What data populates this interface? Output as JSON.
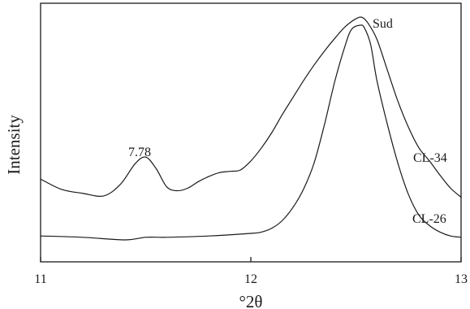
{
  "chart_data": {
    "type": "line",
    "xlabel": "°2θ",
    "ylabel": "Intensity",
    "xlim": [
      11,
      13
    ],
    "ylim": [
      0,
      100
    ],
    "x_ticks": [
      "11",
      "12",
      "13"
    ],
    "y_ticks": [],
    "grid": false,
    "series": [
      {
        "name": "CL-34",
        "x": [
          11.0,
          11.1,
          11.2,
          11.3,
          11.38,
          11.45,
          11.5,
          11.55,
          11.6,
          11.65,
          11.7,
          11.75,
          11.8,
          11.85,
          11.9,
          11.95,
          12.0,
          12.05,
          12.1,
          12.15,
          12.2,
          12.25,
          12.3,
          12.35,
          12.4,
          12.45,
          12.5,
          12.53,
          12.56,
          12.6,
          12.65,
          12.7,
          12.75,
          12.8,
          12.85,
          12.9,
          12.95,
          13.0
        ],
        "y": [
          32,
          28,
          26.5,
          25.5,
          30,
          38,
          40.5,
          36,
          29,
          27.5,
          28.5,
          31,
          33,
          34.5,
          35,
          35.5,
          39,
          44,
          50,
          57,
          63.5,
          70,
          76,
          81.5,
          86.5,
          91,
          94,
          94.5,
          92,
          86,
          74,
          62,
          52,
          44,
          39,
          33.5,
          28.5,
          25
        ]
      },
      {
        "name": "CL-26",
        "x": [
          11.0,
          11.2,
          11.4,
          11.5,
          11.6,
          11.8,
          12.0,
          12.05,
          12.1,
          12.15,
          12.2,
          12.25,
          12.3,
          12.35,
          12.4,
          12.45,
          12.48,
          12.52,
          12.54,
          12.57,
          12.6,
          12.65,
          12.7,
          12.75,
          12.8,
          12.85,
          12.9,
          12.95,
          13.0
        ],
        "y": [
          10,
          9.5,
          8.5,
          9.5,
          9.5,
          10,
          11,
          11.5,
          13,
          16,
          21,
          28,
          38,
          53,
          70,
          84,
          90,
          91.5,
          90.5,
          84,
          70,
          53,
          38,
          26,
          18,
          14,
          11.5,
          10,
          9.5
        ]
      }
    ],
    "annotations": [
      "7.78",
      "Sud",
      "CL-34",
      "CL-26"
    ]
  }
}
